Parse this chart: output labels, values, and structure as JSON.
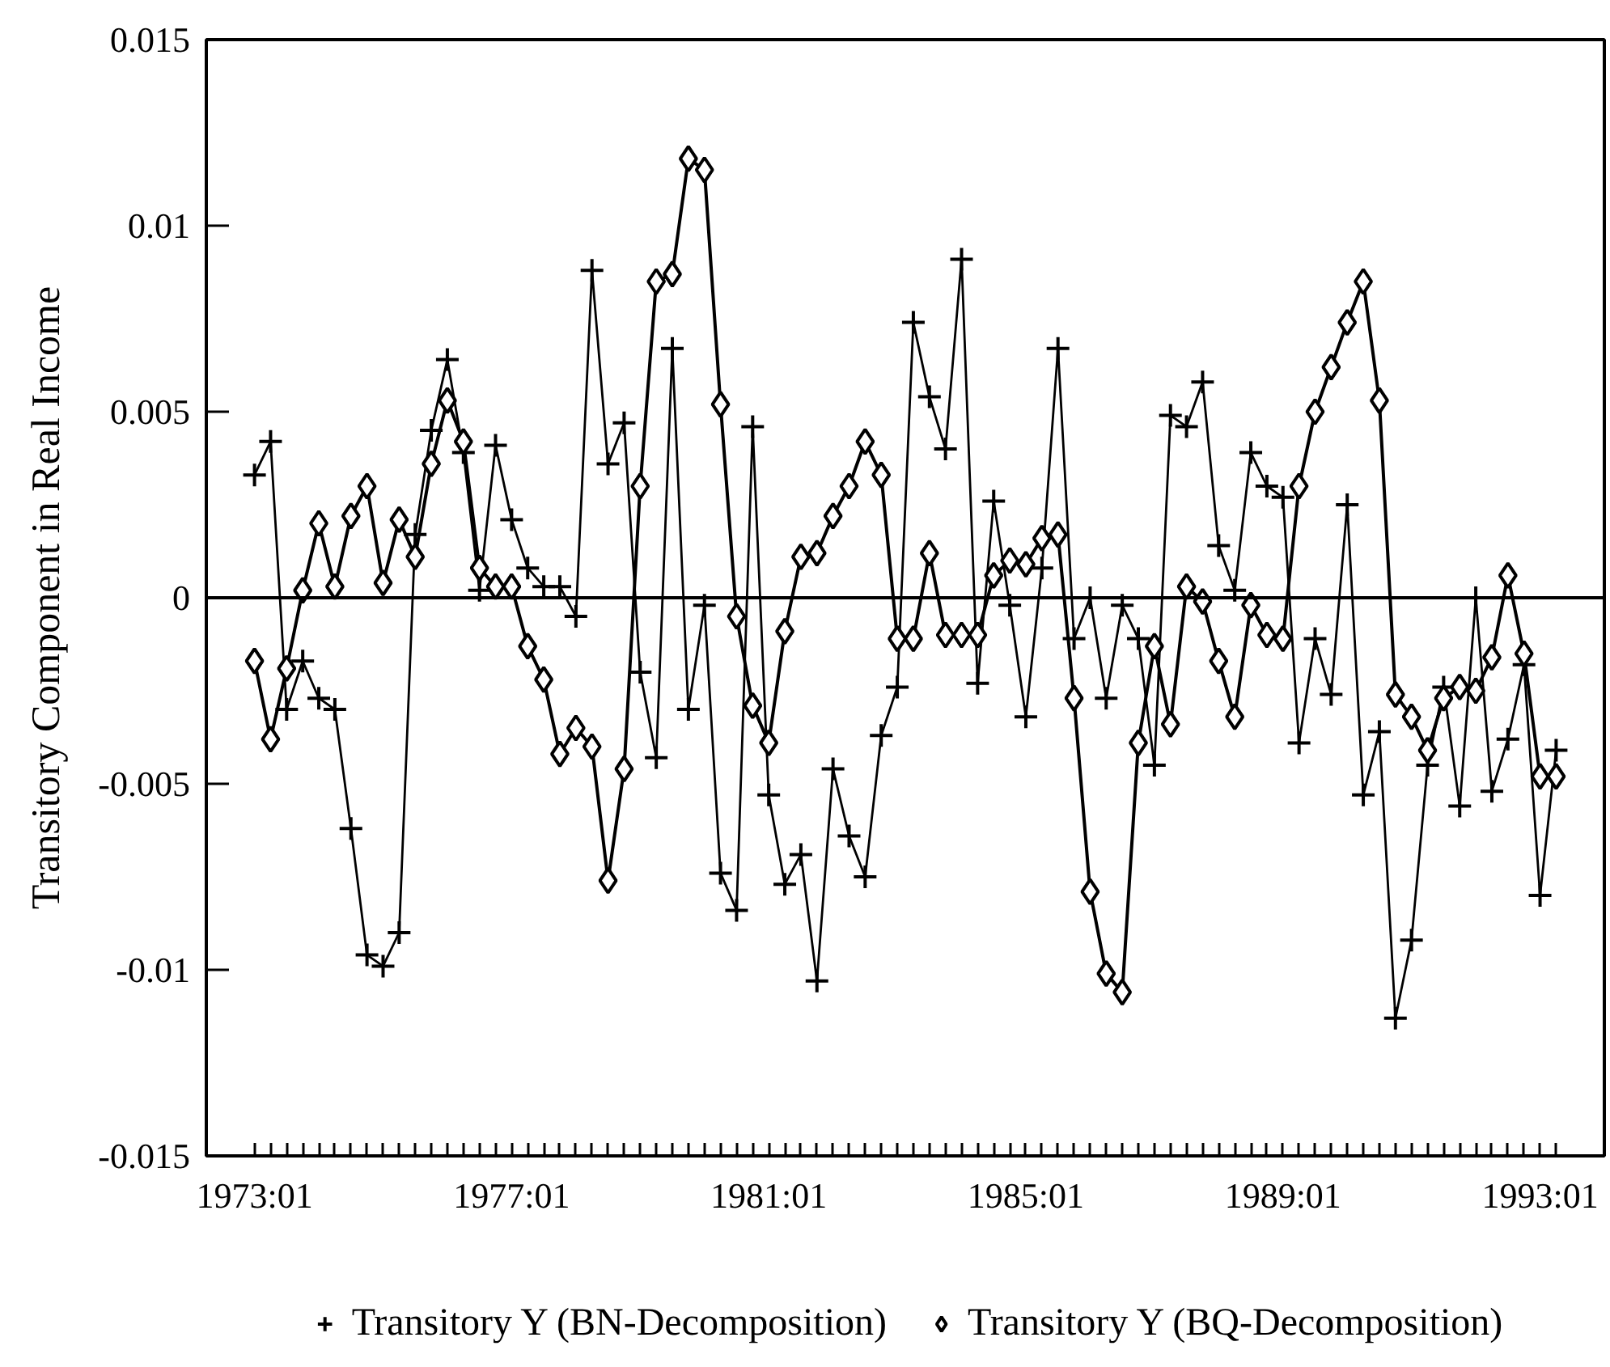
{
  "chart_data": {
    "type": "line",
    "ylabel": "Transitory Component in Real Income",
    "x": [
      "1973-01",
      "1973-04",
      "1973-07",
      "1973-10",
      "1974-01",
      "1974-04",
      "1974-07",
      "1974-10",
      "1975-01",
      "1975-04",
      "1975-07",
      "1975-10",
      "1976-01",
      "1976-04",
      "1976-07",
      "1976-10",
      "1977-01",
      "1977-04",
      "1977-07",
      "1977-10",
      "1978-01",
      "1978-04",
      "1978-07",
      "1978-10",
      "1979-01",
      "1979-04",
      "1979-07",
      "1979-10",
      "1980-01",
      "1980-04",
      "1980-07",
      "1980-10",
      "1981-01",
      "1981-04",
      "1981-07",
      "1981-10",
      "1982-01",
      "1982-04",
      "1982-07",
      "1982-10",
      "1983-01",
      "1983-04",
      "1983-07",
      "1983-10",
      "1984-01",
      "1984-04",
      "1984-07",
      "1984-10",
      "1985-01",
      "1985-04",
      "1985-07",
      "1985-10",
      "1986-01",
      "1986-04",
      "1986-07",
      "1986-10",
      "1987-01",
      "1987-04",
      "1987-07",
      "1987-10",
      "1988-01",
      "1988-04",
      "1988-07",
      "1988-10",
      "1989-01",
      "1989-04",
      "1989-07",
      "1989-10",
      "1990-01",
      "1990-04",
      "1990-07",
      "1990-10",
      "1991-01",
      "1991-04",
      "1991-07",
      "1991-10",
      "1992-01",
      "1992-04",
      "1992-07",
      "1992-10",
      "1993-01",
      "1993-04"
    ],
    "xlim": [
      "1972-04",
      "1994-01"
    ],
    "xticks": [
      {
        "value": "1973-01",
        "label": "1973:01"
      },
      {
        "value": "1973-04",
        "label": null
      },
      {
        "value": "1973-07",
        "label": null
      },
      {
        "value": "1973-10",
        "label": null
      },
      {
        "value": "1974-01",
        "label": null
      },
      {
        "value": "1974-04",
        "label": null
      },
      {
        "value": "1974-07",
        "label": null
      },
      {
        "value": "1974-10",
        "label": null
      },
      {
        "value": "1975-01",
        "label": null
      },
      {
        "value": "1975-04",
        "label": null
      },
      {
        "value": "1975-07",
        "label": null
      },
      {
        "value": "1975-10",
        "label": null
      },
      {
        "value": "1976-01",
        "label": null
      },
      {
        "value": "1976-04",
        "label": null
      },
      {
        "value": "1976-07",
        "label": null
      },
      {
        "value": "1976-10",
        "label": null
      },
      {
        "value": "1977-01",
        "label": "1977:01"
      },
      {
        "value": "1977-04",
        "label": null
      },
      {
        "value": "1977-07",
        "label": null
      },
      {
        "value": "1977-10",
        "label": null
      },
      {
        "value": "1978-01",
        "label": null
      },
      {
        "value": "1978-04",
        "label": null
      },
      {
        "value": "1978-07",
        "label": null
      },
      {
        "value": "1978-10",
        "label": null
      },
      {
        "value": "1979-01",
        "label": null
      },
      {
        "value": "1979-04",
        "label": null
      },
      {
        "value": "1979-07",
        "label": null
      },
      {
        "value": "1979-10",
        "label": null
      },
      {
        "value": "1980-01",
        "label": null
      },
      {
        "value": "1980-04",
        "label": null
      },
      {
        "value": "1980-07",
        "label": null
      },
      {
        "value": "1980-10",
        "label": null
      },
      {
        "value": "1981-01",
        "label": "1981:01"
      },
      {
        "value": "1981-04",
        "label": null
      },
      {
        "value": "1981-07",
        "label": null
      },
      {
        "value": "1981-10",
        "label": null
      },
      {
        "value": "1982-01",
        "label": null
      },
      {
        "value": "1982-04",
        "label": null
      },
      {
        "value": "1982-07",
        "label": null
      },
      {
        "value": "1982-10",
        "label": null
      },
      {
        "value": "1983-01",
        "label": null
      },
      {
        "value": "1983-04",
        "label": null
      },
      {
        "value": "1983-07",
        "label": null
      },
      {
        "value": "1983-10",
        "label": null
      },
      {
        "value": "1984-01",
        "label": null
      },
      {
        "value": "1984-04",
        "label": null
      },
      {
        "value": "1984-07",
        "label": null
      },
      {
        "value": "1984-10",
        "label": null
      },
      {
        "value": "1985-01",
        "label": "1985:01"
      },
      {
        "value": "1985-04",
        "label": null
      },
      {
        "value": "1985-07",
        "label": null
      },
      {
        "value": "1985-10",
        "label": null
      },
      {
        "value": "1986-01",
        "label": null
      },
      {
        "value": "1986-04",
        "label": null
      },
      {
        "value": "1986-07",
        "label": null
      },
      {
        "value": "1986-10",
        "label": null
      },
      {
        "value": "1987-01",
        "label": null
      },
      {
        "value": "1987-04",
        "label": null
      },
      {
        "value": "1987-07",
        "label": null
      },
      {
        "value": "1987-10",
        "label": null
      },
      {
        "value": "1988-01",
        "label": null
      },
      {
        "value": "1988-04",
        "label": null
      },
      {
        "value": "1988-07",
        "label": null
      },
      {
        "value": "1988-10",
        "label": null
      },
      {
        "value": "1989-01",
        "label": "1989:01"
      },
      {
        "value": "1989-04",
        "label": null
      },
      {
        "value": "1989-07",
        "label": null
      },
      {
        "value": "1989-10",
        "label": null
      },
      {
        "value": "1990-01",
        "label": null
      },
      {
        "value": "1990-04",
        "label": null
      },
      {
        "value": "1990-07",
        "label": null
      },
      {
        "value": "1990-10",
        "label": null
      },
      {
        "value": "1991-01",
        "label": null
      },
      {
        "value": "1991-04",
        "label": null
      },
      {
        "value": "1991-07",
        "label": null
      },
      {
        "value": "1991-10",
        "label": null
      },
      {
        "value": "1992-01",
        "label": null
      },
      {
        "value": "1992-04",
        "label": null
      },
      {
        "value": "1992-07",
        "label": null
      },
      {
        "value": "1992-10",
        "label": null
      },
      {
        "value": "1993-01",
        "label": "1993:01"
      },
      {
        "value": "1993-04",
        "label": null
      }
    ],
    "ylim": [
      -0.015,
      0.015
    ],
    "yticks": [
      -0.015,
      -0.01,
      -0.005,
      0,
      0.005,
      0.01,
      0.015
    ],
    "series": [
      {
        "name": "Transitory Y (BN-Decomposition)",
        "color": "#000000",
        "marker": "cross",
        "values": [
          0.0033,
          0.0042,
          -0.003,
          -0.0017,
          -0.0027,
          -0.003,
          -0.0062,
          -0.0096,
          -0.0099,
          -0.009,
          0.0017,
          0.0045,
          0.0064,
          0.0039,
          0.0002,
          0.0041,
          0.0021,
          0.0008,
          0.0003,
          0.0003,
          -0.0005,
          0.0088,
          0.0036,
          0.0047,
          -0.002,
          -0.0043,
          0.0067,
          -0.003,
          -0.0002,
          -0.0074,
          -0.0084,
          0.0046,
          -0.0053,
          -0.0077,
          -0.0069,
          -0.0103,
          -0.0046,
          -0.0064,
          -0.0075,
          -0.0037,
          -0.0024,
          0.0074,
          0.0054,
          0.004,
          0.0091,
          -0.0023,
          0.0026,
          -0.0002,
          -0.0032,
          0.0008,
          0.0067,
          -0.0011,
          0.0,
          -0.0027,
          -0.0002,
          -0.0011,
          -0.0045,
          0.0049,
          0.0046,
          0.0058,
          0.0014,
          0.0002,
          0.0039,
          0.003,
          0.0027,
          -0.0039,
          -0.0011,
          -0.0026,
          0.0025,
          -0.0053,
          -0.0036,
          -0.0113,
          -0.0092,
          -0.0045,
          -0.0024,
          -0.0056,
          0.0,
          -0.0052,
          -0.0038,
          -0.0018,
          -0.008,
          -0.0041
        ]
      },
      {
        "name": "Transitory Y (BQ-Decomposition)",
        "color": "#000000",
        "marker": "diamond",
        "values": [
          -0.0017,
          -0.0038,
          -0.0019,
          0.0002,
          0.002,
          0.0003,
          0.0022,
          0.003,
          0.0004,
          0.0021,
          0.0011,
          0.0036,
          0.0053,
          0.0042,
          0.0008,
          0.0003,
          0.0003,
          -0.0013,
          -0.0022,
          -0.0042,
          -0.0035,
          -0.004,
          -0.0076,
          -0.0046,
          0.003,
          0.0085,
          0.0087,
          0.0118,
          0.0115,
          0.0052,
          -0.0005,
          -0.0029,
          -0.0039,
          -0.0009,
          0.0011,
          0.0012,
          0.0022,
          0.003,
          0.0042,
          0.0033,
          -0.0011,
          -0.0011,
          0.0012,
          -0.001,
          -0.001,
          -0.001,
          0.0006,
          0.001,
          0.0009,
          0.0016,
          0.0017,
          -0.0027,
          -0.0079,
          -0.0101,
          -0.0106,
          -0.0039,
          -0.0013,
          -0.0034,
          0.0003,
          -0.0001,
          -0.0017,
          -0.0032,
          -0.0002,
          -0.001,
          -0.0011,
          0.003,
          0.005,
          0.0062,
          0.0074,
          0.0085,
          0.0053,
          -0.0026,
          -0.0032,
          -0.0041,
          -0.0027,
          -0.0024,
          -0.0025,
          -0.0016,
          0.0006,
          -0.0015,
          -0.0048,
          -0.0048
        ]
      }
    ],
    "ref_lines": [
      {
        "axis": "y",
        "value": 0,
        "color": "#000000"
      }
    ],
    "legend": "bottom",
    "grid": false
  }
}
